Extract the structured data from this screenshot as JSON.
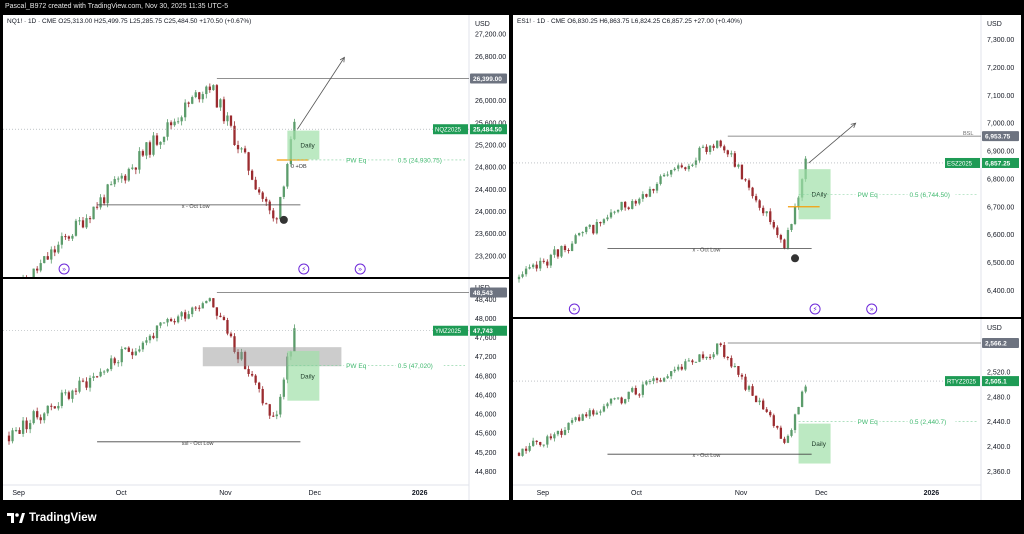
{
  "header": {
    "credit": "Pascal_B972 created with TradingView.com, Nov 30, 2025 11:35 UTC-5"
  },
  "footer": {
    "logo_text": "TradingView"
  },
  "colors": {
    "up": "#5b9c6b",
    "down": "#9b2b2f",
    "level": "#b8b8b8",
    "badge_green": "#1e9b55",
    "badge_gray": "#6d7380",
    "daily_zone": "#9fe0a8",
    "gray_zone": "#8f8f8f",
    "ob_line": "#f59e0b",
    "pw_text": "#3fb86e",
    "signal": "#6d28d9",
    "pivot": "#333333"
  },
  "panels": [
    {
      "id": "nq",
      "info": "NQ1! · 1D · CME   O25,313.00  H25,499.75  L25,285.75  C25,484.50  +170.50 (+0.67%)",
      "currency": "USD",
      "y_range": [
        23000,
        27400
      ],
      "y_ticks": [
        {
          "v": 27200,
          "label": "27,200.00"
        },
        {
          "v": 26800,
          "label": "26,800.00"
        },
        {
          "v": 26400,
          "label": "26,400.00"
        },
        {
          "v": 26000,
          "label": "26,000.00"
        },
        {
          "v": 25600,
          "label": "25,600.00"
        },
        {
          "v": 25200,
          "label": "25,200.00"
        },
        {
          "v": 24800,
          "label": "24,800.00"
        },
        {
          "v": 24400,
          "label": "24,400.00"
        },
        {
          "v": 24000,
          "label": "24,000.00"
        },
        {
          "v": 23600,
          "label": "23,600.00"
        },
        {
          "v": 23200,
          "label": "23,200.00"
        }
      ],
      "series_start": 22400,
      "series_end": 25484,
      "series_low": 22950,
      "series_high": 26330,
      "seed": 11,
      "resistance": {
        "v": 26399,
        "label": "26,399.00",
        "badge": "gray"
      },
      "last": {
        "v": 25484.5,
        "label": "25,484.50",
        "symbol": "NQZ2025"
      },
      "pw": {
        "v": 24930.75,
        "label": "PW Eq",
        "value_label": "0.5 (24,930.75)"
      },
      "daily": {
        "v": 25200,
        "h": 130,
        "label": "Daily",
        "type": "daily"
      },
      "ob": {
        "v": 24930,
        "label": "0 +OB"
      },
      "oct_low": {
        "v": 24120,
        "label": "x - Oct Low"
      },
      "pivot_dot": {
        "v": 23850
      },
      "arrow": {
        "v1": 25484,
        "v2": 26780
      },
      "signals": [
        "»",
        "⚡",
        "»"
      ],
      "show_dates": false
    },
    {
      "id": "ym",
      "info": "",
      "currency": "USD",
      "y_range": [
        44600,
        48700
      ],
      "y_ticks": [
        {
          "v": 48400,
          "label": "48,400"
        },
        {
          "v": 48000,
          "label": "48,000"
        },
        {
          "v": 47600,
          "label": "47,600"
        },
        {
          "v": 47200,
          "label": "47,200"
        },
        {
          "v": 46800,
          "label": "46,800"
        },
        {
          "v": 46400,
          "label": "46,400"
        },
        {
          "v": 46000,
          "label": "46,000"
        },
        {
          "v": 45600,
          "label": "45,600"
        },
        {
          "v": 45200,
          "label": "45,200"
        },
        {
          "v": 44800,
          "label": "44,800"
        }
      ],
      "series_start": 45550,
      "series_end": 47743,
      "series_low": 44950,
      "series_high": 48480,
      "seed": 23,
      "resistance": {
        "v": 48543,
        "label": "48,543",
        "badge": "gray"
      },
      "last": {
        "v": 47743,
        "label": "47,743",
        "symbol": "YMZ2025"
      },
      "pw": {
        "v": 47020,
        "label": "PW Eq",
        "value_label": "0.5 (47,020)"
      },
      "daily": {
        "v": 46800,
        "h": 260,
        "label": "Daily",
        "type": "daily"
      },
      "gray_zone": {
        "top": 47400,
        "bottom": 47000
      },
      "oct_low": {
        "v": 45420,
        "label": "ssl - Oct Low"
      },
      "arrow": null,
      "signals": [],
      "show_dates": true,
      "dates": [
        {
          "f": 0.02,
          "label": "Sep"
        },
        {
          "f": 0.24,
          "label": "Oct"
        },
        {
          "f": 0.46,
          "label": "Nov"
        },
        {
          "f": 0.65,
          "label": "Dec"
        },
        {
          "f": 0.87,
          "label": "2026"
        }
      ]
    },
    {
      "id": "es",
      "info": "ES1! · 1D · CME   O6,830.25  H6,863.75  L6,824.25  C6,857.25  +27.00 (+0.40%)",
      "currency": "USD",
      "y_range": [
        6340,
        7360
      ],
      "y_ticks": [
        {
          "v": 7300,
          "label": "7,300.00"
        },
        {
          "v": 7200,
          "label": "7,200.00"
        },
        {
          "v": 7100,
          "label": "7,100.00"
        },
        {
          "v": 7000,
          "label": "7,000.00"
        },
        {
          "v": 6900,
          "label": "6,900.00"
        },
        {
          "v": 6800,
          "label": "6,800.00"
        },
        {
          "v": 6700,
          "label": "6,700.00"
        },
        {
          "v": 6600,
          "label": "6,600.00"
        },
        {
          "v": 6500,
          "label": "6,500.00"
        },
        {
          "v": 6400,
          "label": "6,400.00"
        }
      ],
      "series_start": 6440,
      "series_end": 6857,
      "series_low": 6440,
      "series_high": 6940,
      "seed": 37,
      "resistance": {
        "v": 6953.75,
        "label": "6,953.75",
        "badge": "gray",
        "tag": "BSL"
      },
      "last": {
        "v": 6857.25,
        "label": "6,857.25",
        "symbol": "ESZ2025"
      },
      "pw": {
        "v": 6744.5,
        "label": "PW Eq",
        "value_label": "0.5 (6,744.50)"
      },
      "daily": {
        "v": 6745,
        "h": 45,
        "label": "DAily",
        "type": "daily"
      },
      "ob": {
        "v": 6700,
        "label": ""
      },
      "oct_low": {
        "v": 6550,
        "label": "x - Oct Low"
      },
      "pivot_dot": {
        "v": 6515
      },
      "arrow": {
        "v1": 6857,
        "v2": 7000
      },
      "signals": [
        "»",
        "⚡",
        "»"
      ],
      "show_dates": false
    },
    {
      "id": "rty",
      "info": "",
      "currency": "USD",
      "y_range": [
        2345,
        2595
      ],
      "y_ticks": [
        {
          "v": 2520,
          "label": "2,520.0"
        },
        {
          "v": 2480,
          "label": "2,480.0"
        },
        {
          "v": 2440,
          "label": "2,440.0"
        },
        {
          "v": 2400,
          "label": "2,400.0"
        },
        {
          "v": 2360,
          "label": "2,360.0"
        }
      ],
      "series_start": 2390,
      "series_end": 2505,
      "series_low": 2355,
      "series_high": 2560,
      "seed": 51,
      "resistance": {
        "v": 2566.2,
        "label": "2,566.2",
        "badge": "gray"
      },
      "last": {
        "v": 2505.1,
        "label": "2,505.1",
        "symbol": "RTYZ2025"
      },
      "pw": {
        "v": 2440.7,
        "label": "PW Eq",
        "value_label": "0.5 (2,440.7)"
      },
      "daily": {
        "v": 2405,
        "h": 16,
        "label": "Daily",
        "type": "daily"
      },
      "oct_low": {
        "v": 2388,
        "label": "x - Oct Low"
      },
      "arrow": null,
      "signals": [],
      "show_dates": true,
      "dates": [
        {
          "f": 0.05,
          "label": "Sep"
        },
        {
          "f": 0.25,
          "label": "Oct"
        },
        {
          "f": 0.47,
          "label": "Nov"
        },
        {
          "f": 0.64,
          "label": "Dec"
        },
        {
          "f": 0.87,
          "label": "2026"
        }
      ]
    }
  ]
}
